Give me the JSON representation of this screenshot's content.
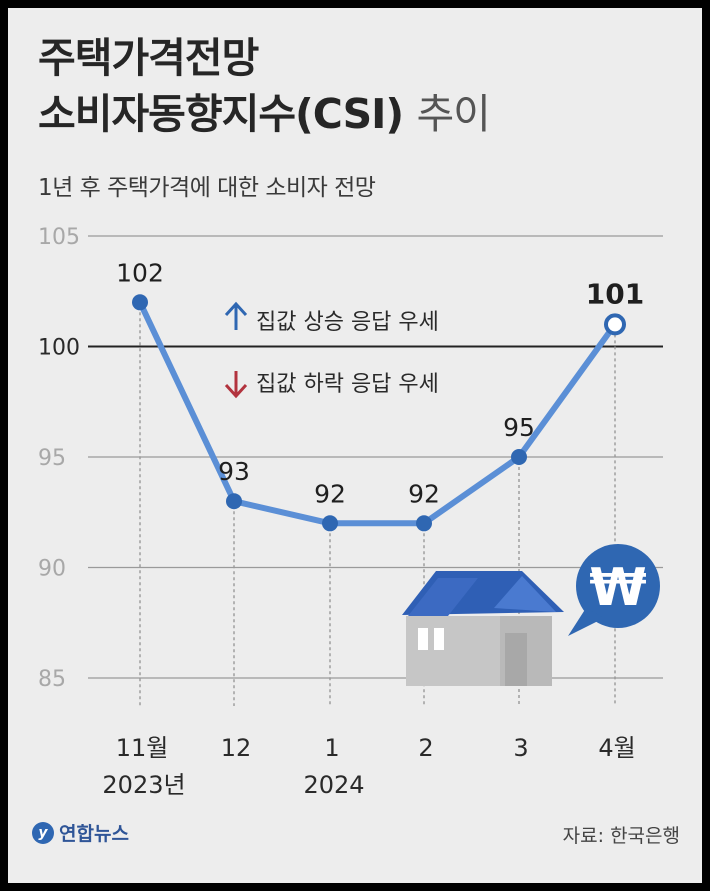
{
  "header": {
    "title_line1": "주택가격전망",
    "title_line2": "소비자동향지수(CSI)",
    "title_suffix": "추이",
    "subtitle": "1년 후 주택가격에 대한 소비자 전망"
  },
  "legend": {
    "up_label": "집값 상승 응답 우세",
    "down_label": "집값 하락 응답 우세",
    "up_color": "#2f67b2",
    "down_color": "#b2333e"
  },
  "footer": {
    "logo_text": "연합뉴스",
    "source": "자료: 한국은행"
  },
  "colors": {
    "line": "#5b8fd6",
    "marker": "#2f67b2",
    "background": "#ededed",
    "roof": "#2f5fb5",
    "house_wall": "#c6c6c6",
    "bubble": "#2f67b2"
  },
  "icons": [
    "up-arrow-icon",
    "down-arrow-icon",
    "house-icon",
    "won-bubble-icon",
    "yonhap-logo-icon"
  ],
  "chart_data": {
    "type": "line",
    "categories": [
      "11월",
      "12",
      "1",
      "2",
      "3",
      "4월"
    ],
    "category_sublabels": [
      "2023년",
      "",
      "2024",
      "",
      "",
      ""
    ],
    "values": [
      102,
      93,
      92,
      92,
      95,
      101
    ],
    "data_labels": [
      "102",
      "93",
      "92",
      "92",
      "95",
      "101"
    ],
    "highlight_last": true,
    "ylim": [
      85,
      105
    ],
    "yticks": [
      "105",
      "100",
      "95",
      "90",
      "85"
    ],
    "reference_line": 100,
    "grid": true
  }
}
